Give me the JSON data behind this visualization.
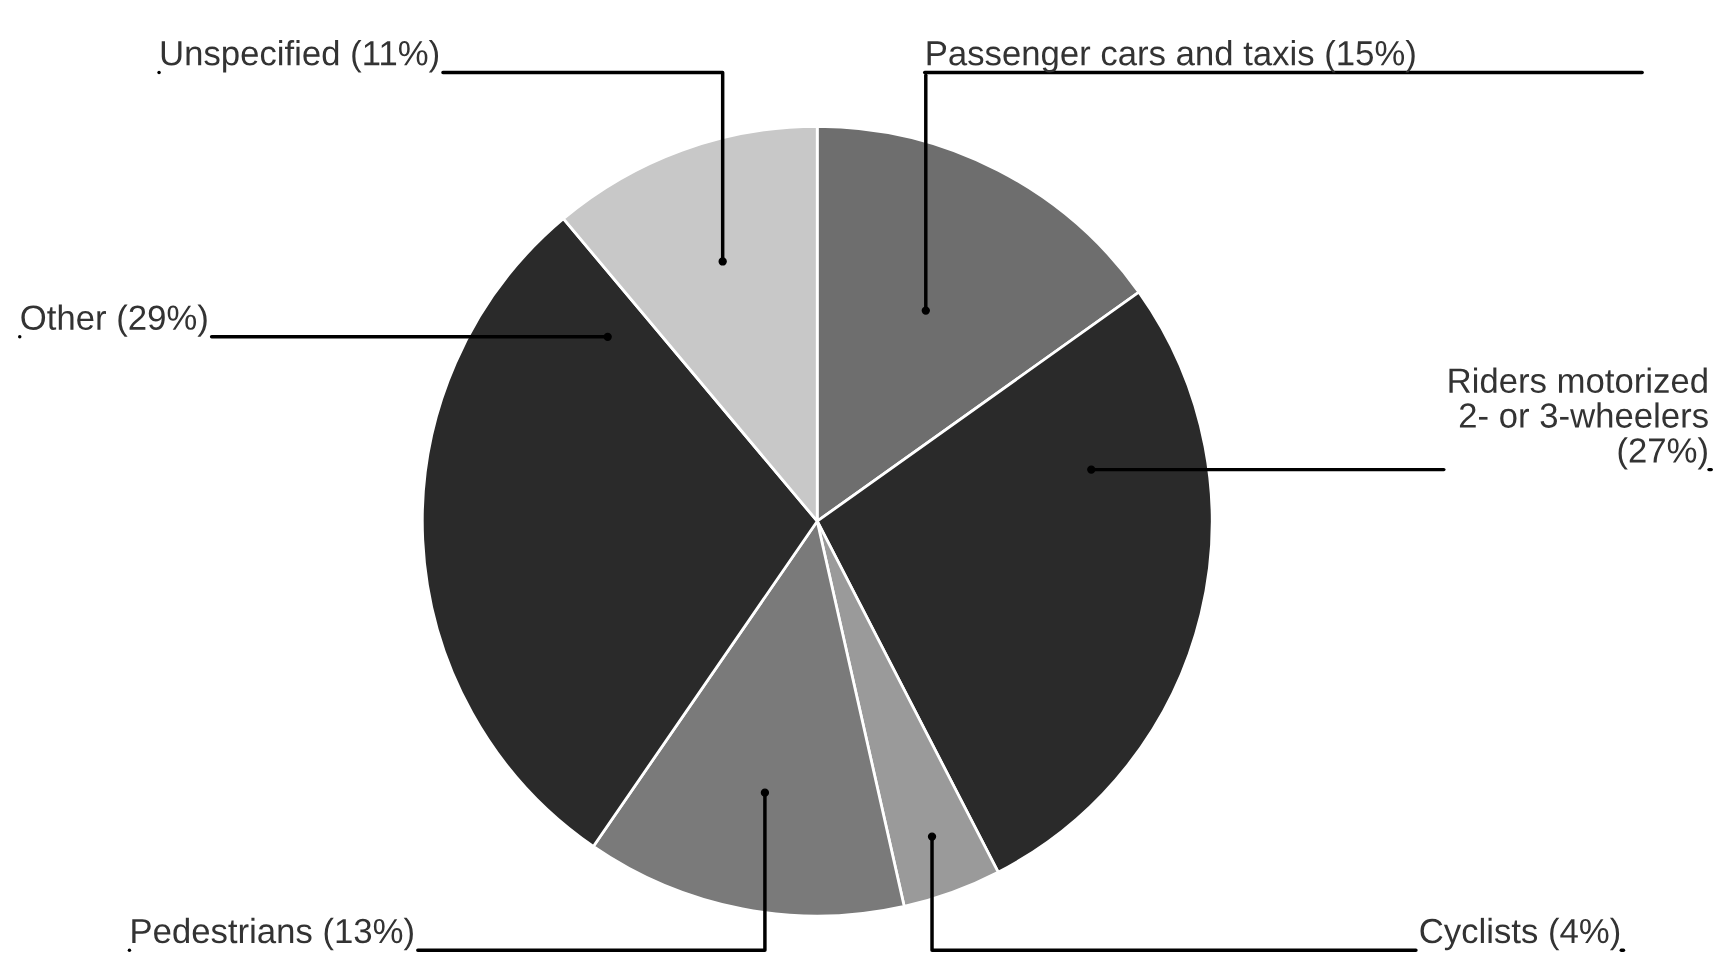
{
  "chart_data": {
    "type": "pie",
    "categories": [
      "Passenger cars and taxis (15%)",
      "Riders motorized\n2- or 3-wheelers\n(27%)",
      "Cyclists (4%)",
      "Pedestrians (13%)",
      "Other (29%)",
      "Unspecified (11%)"
    ],
    "values": [
      15,
      27,
      4,
      13,
      29,
      11
    ],
    "colors": [
      "#6e6e6e",
      "#2a2a2a",
      "#9a9a9a",
      "#7a7a7a",
      "#2a2a2a",
      "#c8c8c8"
    ]
  }
}
